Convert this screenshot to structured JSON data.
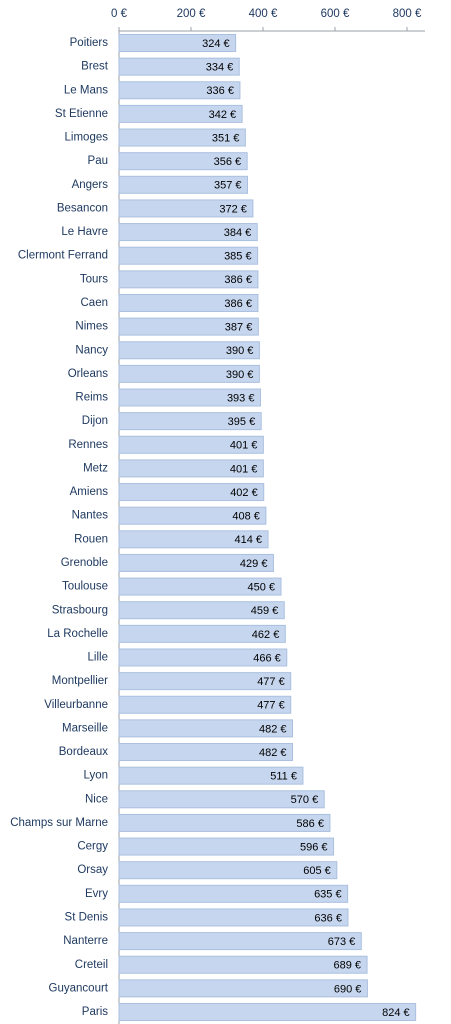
{
  "chart_data": {
    "type": "bar",
    "orientation": "horizontal",
    "categories": [
      "Poitiers",
      "Brest",
      "Le Mans",
      "St Etienne",
      "Limoges",
      "Pau",
      "Angers",
      "Besancon",
      "Le Havre",
      "Clermont Ferrand",
      "Tours",
      "Caen",
      "Nimes",
      "Nancy",
      "Orleans",
      "Reims",
      "Dijon",
      "Rennes",
      "Metz",
      "Amiens",
      "Nantes",
      "Rouen",
      "Grenoble",
      "Toulouse",
      "Strasbourg",
      "La Rochelle",
      "Lille",
      "Montpellier",
      "Villeurbanne",
      "Marseille",
      "Bordeaux",
      "Lyon",
      "Nice",
      "Champs sur Marne",
      "Cergy",
      "Orsay",
      "Evry",
      "St Denis",
      "Nanterre",
      "Creteil",
      "Guyancourt",
      "Paris"
    ],
    "values": [
      324,
      334,
      336,
      342,
      351,
      356,
      357,
      372,
      384,
      385,
      386,
      386,
      387,
      390,
      390,
      393,
      395,
      401,
      401,
      402,
      408,
      414,
      429,
      450,
      459,
      462,
      466,
      477,
      477,
      482,
      482,
      511,
      570,
      586,
      596,
      605,
      635,
      636,
      673,
      689,
      690,
      824
    ],
    "value_labels": [
      "324 €",
      "334 €",
      "336 €",
      "342 €",
      "351 €",
      "356 €",
      "357 €",
      "372 €",
      "384 €",
      "385 €",
      "386 €",
      "386 €",
      "387 €",
      "390 €",
      "390 €",
      "393 €",
      "395 €",
      "401 €",
      "401 €",
      "402 €",
      "408 €",
      "414 €",
      "429 €",
      "450 €",
      "459 €",
      "462 €",
      "466 €",
      "477 €",
      "477 €",
      "482 €",
      "482 €",
      "511 €",
      "570 €",
      "586 €",
      "596 €",
      "605 €",
      "635 €",
      "636 €",
      "673 €",
      "689 €",
      "690 €",
      "824 €"
    ],
    "color": "#c6d6ee",
    "xlim": [
      0,
      850
    ],
    "xticks": [
      {
        "value": 0,
        "label": "0 €"
      },
      {
        "value": 200,
        "label": "200 €"
      },
      {
        "value": 400,
        "label": "400 €"
      },
      {
        "value": 600,
        "label": "600 €"
      },
      {
        "value": 800,
        "label": "800 €"
      }
    ],
    "axis_position": "top"
  }
}
